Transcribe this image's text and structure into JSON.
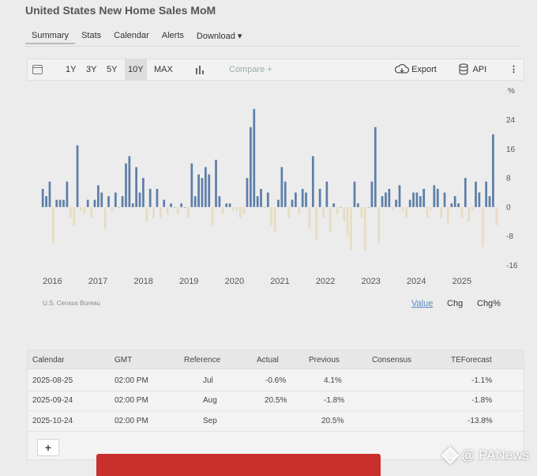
{
  "page": {
    "title": "United States New Home Sales MoM"
  },
  "nav": {
    "summary": "Summary",
    "stats": "Stats",
    "calendar": "Calendar",
    "alerts": "Alerts",
    "download": "Download",
    "download_caret": "▾"
  },
  "toolbar": {
    "range_1y": "1Y",
    "range_3y": "3Y",
    "range_5y": "5Y",
    "range_10y": "10Y",
    "range_max": "MAX",
    "compare_placeholder": "Compare +",
    "export": "Export",
    "api": "API",
    "more": "⋮",
    "selected_range": "10Y"
  },
  "chart_data": {
    "type": "bar",
    "unit_label": "%",
    "y_ticks": [
      24,
      16,
      8,
      0,
      -8,
      -16
    ],
    "ylim": [
      -17,
      30
    ],
    "x_ticks": [
      "2016",
      "2017",
      "2018",
      "2019",
      "2020",
      "2021",
      "2022",
      "2023",
      "2024",
      "2025"
    ],
    "x_range": [
      2015.75,
      2025.8
    ],
    "values": [
      5,
      3,
      7,
      -10,
      2,
      2,
      2,
      7,
      -3,
      -5,
      17,
      -1,
      -2,
      2,
      -3,
      2,
      6,
      4,
      -6,
      3,
      -1,
      4,
      0,
      3,
      12,
      14,
      1,
      11,
      4,
      8,
      -4,
      5,
      -3,
      5,
      -3,
      2,
      -2,
      1,
      0,
      -2,
      1,
      0,
      -3,
      12,
      3,
      9,
      8,
      11,
      9,
      -5,
      13,
      3,
      -2,
      1,
      1,
      -1,
      -1,
      -3,
      -2,
      8,
      22,
      27,
      3,
      5,
      0,
      4,
      -5,
      -7,
      2,
      11,
      7,
      -3,
      2,
      4,
      -2,
      5,
      4,
      -6,
      14,
      -9,
      5,
      -3,
      7,
      -7,
      1,
      -2,
      0,
      -4,
      -8,
      -12,
      7,
      1,
      -3,
      -12,
      0,
      7,
      22,
      -10,
      3,
      4,
      5,
      -1,
      2,
      6,
      -1,
      -3,
      2,
      4,
      4,
      3,
      5,
      -3,
      -1,
      6,
      5,
      -3,
      4,
      -5,
      1,
      3,
      1,
      -3,
      8,
      -4,
      -1,
      7,
      4,
      -11,
      7,
      3,
      20,
      -5
    ]
  },
  "chart_footer": {
    "source": "U.S. Census Bureau",
    "view_value": "Value",
    "view_chg": "Chg",
    "view_chg_pct": "Chg%"
  },
  "table": {
    "headers": [
      "Calendar",
      "GMT",
      "Reference",
      "Actual",
      "Previous",
      "Consensus",
      "TEForecast"
    ],
    "rows": [
      {
        "calendar": "2025-08-25",
        "gmt": "02:00 PM",
        "reference": "Jul",
        "actual": "-0.6%",
        "previous": "4.1%",
        "consensus": "",
        "teforecast": "-1.1%"
      },
      {
        "calendar": "2025-09-24",
        "gmt": "02:00 PM",
        "reference": "Aug",
        "actual": "20.5%",
        "previous": "-1.8%",
        "consensus": "",
        "teforecast": "-1.8%"
      },
      {
        "calendar": "2025-10-24",
        "gmt": "02:00 PM",
        "reference": "Sep",
        "actual": "",
        "previous": "20.5%",
        "consensus": "",
        "teforecast": "-13.8%"
      }
    ],
    "add_label": "+"
  },
  "watermark": {
    "text": "@ PANews"
  },
  "colors": {
    "positive_bar": "#5e7ea8",
    "negative_bar": "#e6dcc0",
    "axis_text": "#555555",
    "link_blue": "#5b8bc6"
  }
}
